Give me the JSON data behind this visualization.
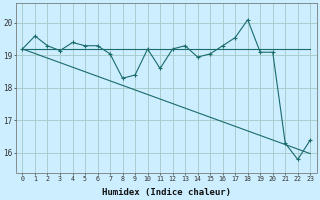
{
  "xlabel": "Humidex (Indice chaleur)",
  "background_color": "#cceeff",
  "grid_color": "#aacccc",
  "line_color": "#1a6b6b",
  "x_ticks": [
    0,
    1,
    2,
    3,
    4,
    5,
    6,
    7,
    8,
    9,
    10,
    11,
    12,
    13,
    14,
    15,
    16,
    17,
    18,
    19,
    20,
    21,
    22,
    23
  ],
  "y_ticks": [
    16,
    17,
    18,
    19,
    20
  ],
  "ylim": [
    15.4,
    20.6
  ],
  "xlim": [
    -0.5,
    23.5
  ],
  "line1_y": [
    19.2,
    19.6,
    19.3,
    19.15,
    19.4,
    19.3,
    19.3,
    19.05,
    18.3,
    18.4,
    19.2,
    18.6,
    19.2,
    19.3,
    18.95,
    19.05,
    19.3,
    19.55,
    20.1,
    19.1,
    19.1,
    16.3,
    15.8,
    16.4
  ],
  "line2_y": [
    19.2,
    19.2,
    19.2,
    19.2,
    19.2,
    19.2,
    19.2,
    19.2,
    19.2,
    19.2,
    19.2,
    19.2,
    19.2,
    19.2,
    19.2,
    19.2,
    19.2,
    19.2,
    19.2,
    19.2,
    19.2,
    19.2,
    19.2,
    19.2
  ],
  "line3_y": [
    19.2,
    19.06,
    18.92,
    18.78,
    18.64,
    18.5,
    18.36,
    18.22,
    18.08,
    17.94,
    17.8,
    17.66,
    17.52,
    17.38,
    17.24,
    17.1,
    16.96,
    16.82,
    16.68,
    16.54,
    16.4,
    16.26,
    16.12,
    15.98
  ]
}
